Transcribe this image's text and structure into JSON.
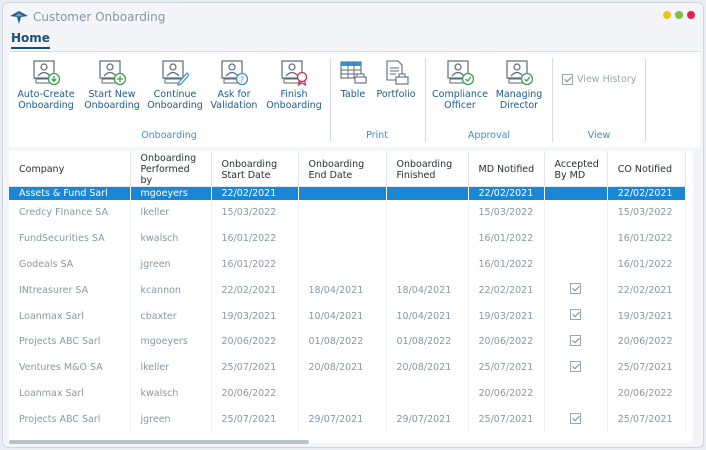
{
  "window": {
    "title": "Customer Onboarding",
    "controls": [
      "#f2c218",
      "#7cc142",
      "#e0234e"
    ]
  },
  "tabs": {
    "home": "Home"
  },
  "ribbon": {
    "onboarding": {
      "label": "Onboarding",
      "buttons": [
        {
          "l1": "Auto-Create",
          "l2": "Onboarding",
          "icon": "user-card-download-icon"
        },
        {
          "l1": "Start New",
          "l2": "Onboarding",
          "icon": "user-card-add-icon"
        },
        {
          "l1": "Continue",
          "l2": "Onboarding",
          "icon": "user-card-edit-icon"
        },
        {
          "l1": "Ask for",
          "l2": "Validation",
          "icon": "user-card-question-icon"
        },
        {
          "l1": "Finish",
          "l2": "Onboarding",
          "icon": "user-card-award-icon"
        }
      ]
    },
    "print": {
      "label": "Print",
      "buttons": [
        {
          "l1": "Table",
          "icon": "table-print-icon"
        },
        {
          "l1": "Portfolio",
          "icon": "document-print-icon"
        }
      ]
    },
    "approval": {
      "label": "Approval",
      "buttons": [
        {
          "l1": "Compliance",
          "l2": "Officer",
          "icon": "user-card-check-icon"
        },
        {
          "l1": "Managing",
          "l2": "Director",
          "icon": "user-card-check-icon"
        }
      ]
    },
    "view": {
      "label": "View",
      "view_history": "View History",
      "view_history_checked": true
    }
  },
  "grid": {
    "columns": [
      {
        "l1": "Company",
        "l2": ""
      },
      {
        "l1": "Onboarding",
        "l2": "Performed by"
      },
      {
        "l1": "Onboarding",
        "l2": "Start Date"
      },
      {
        "l1": "Onboarding",
        "l2": "End Date"
      },
      {
        "l1": "Onboarding",
        "l2": "Finished"
      },
      {
        "l1": "MD Notified",
        "l2": ""
      },
      {
        "l1": "Accepted",
        "l2": "By MD"
      },
      {
        "l1": "CO Notified",
        "l2": ""
      }
    ],
    "selected_row": 0,
    "rows": [
      [
        "Assets & Fund Sarl",
        "mgoeyers",
        "22/02/2021",
        "",
        "",
        "22/02/2021",
        false,
        "22/02/2021"
      ],
      [
        "Credcy FInance SA",
        "lkeller",
        "15/03/2022",
        "",
        "",
        "15/03/2022",
        false,
        "15/03/2022"
      ],
      [
        "FundSecurities SA",
        "kwalsch",
        "16/01/2022",
        "",
        "",
        "16/01/2022",
        false,
        "16/01/2022"
      ],
      [
        "Godeals SA",
        "jgreen",
        "16/01/2022",
        "",
        "",
        "16/01/2022",
        false,
        "16/01/2022"
      ],
      [
        "INtreasurer SA",
        "kcannon",
        "22/02/2021",
        "18/04/2021",
        "18/04/2021",
        "22/02/2021",
        true,
        "22/02/2021"
      ],
      [
        "Loanmax Sarl",
        "cbaxter",
        "19/03/2021",
        "10/04/2021",
        "10/04/2021",
        "19/03/2021",
        true,
        "19/03/2021"
      ],
      [
        "Projects ABC Sarl",
        "mgoeyers",
        "20/06/2022",
        "01/08/2022",
        "01/08/2022",
        "20/06/2022",
        true,
        "20/06/2022"
      ],
      [
        "Ventures M&O SA",
        "lkeller",
        "25/07/2021",
        "20/08/2021",
        "20/08/2021",
        "25/07/2021",
        true,
        "25/07/2021"
      ],
      [
        "Loanmax Sarl",
        "kwalsch",
        "20/06/2022",
        "",
        "",
        "20/06/2022",
        false,
        "20/06/2022"
      ],
      [
        "Projects ABC Sarl",
        "jgreen",
        "25/07/2021",
        "29/07/2021",
        "29/07/2021",
        "25/07/2021",
        true,
        "25/07/2021"
      ]
    ]
  }
}
